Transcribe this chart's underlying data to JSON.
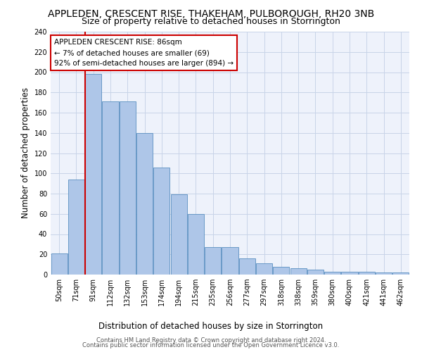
{
  "title": "APPLEDEN, CRESCENT RISE, THAKEHAM, PULBOROUGH, RH20 3NB",
  "subtitle": "Size of property relative to detached houses in Storrington",
  "xlabel": "Distribution of detached houses by size in Storrington",
  "ylabel": "Number of detached properties",
  "categories": [
    "50sqm",
    "71sqm",
    "91sqm",
    "112sqm",
    "132sqm",
    "153sqm",
    "174sqm",
    "194sqm",
    "215sqm",
    "235sqm",
    "256sqm",
    "277sqm",
    "297sqm",
    "318sqm",
    "338sqm",
    "359sqm",
    "380sqm",
    "400sqm",
    "421sqm",
    "441sqm",
    "462sqm"
  ],
  "values": [
    21,
    94,
    198,
    171,
    171,
    140,
    106,
    79,
    60,
    27,
    27,
    16,
    11,
    8,
    6,
    5,
    3,
    3,
    3,
    2,
    2
  ],
  "bar_color": "#aec6e8",
  "bar_edge_color": "#5a8fc0",
  "grid_color": "#c8d4e8",
  "bg_color": "#eef2fb",
  "vline_color": "#cc0000",
  "annotation_text": "APPLEDEN CRESCENT RISE: 86sqm\n← 7% of detached houses are smaller (69)\n92% of semi-detached houses are larger (894) →",
  "annotation_box_color": "#cc0000",
  "footer1": "Contains HM Land Registry data © Crown copyright and database right 2024.",
  "footer2": "Contains public sector information licensed under the Open Government Licence v3.0.",
  "ylim": [
    0,
    240
  ],
  "yticks": [
    0,
    20,
    40,
    60,
    80,
    100,
    120,
    140,
    160,
    180,
    200,
    220,
    240
  ],
  "title_fontsize": 10,
  "subtitle_fontsize": 9,
  "tick_fontsize": 7,
  "ylabel_fontsize": 8.5,
  "xlabel_fontsize": 8.5,
  "annotation_fontsize": 7.5,
  "footer_fontsize": 6
}
